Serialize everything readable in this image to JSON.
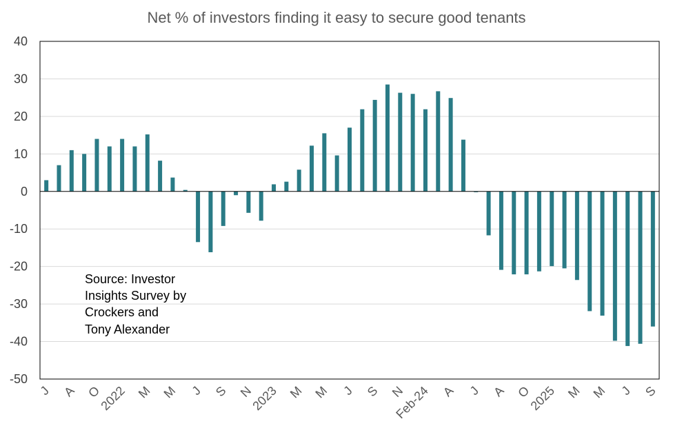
{
  "chart_data": {
    "type": "bar",
    "title": "Net % of investors finding it easy to secure good tenants",
    "xlabel": "",
    "ylabel": "",
    "ylim": [
      -50,
      40
    ],
    "y_ticks": [
      40,
      30,
      20,
      10,
      0,
      -10,
      -20,
      -30,
      -40,
      -50
    ],
    "grid": true,
    "bar_color": "#2a7b86",
    "x_tick_labels": [
      "J",
      "A",
      "O",
      "2022",
      "M",
      "M",
      "J",
      "S",
      "N",
      "2023",
      "M",
      "M",
      "J",
      "S",
      "N",
      "Feb-24",
      "A",
      "J",
      "A",
      "O",
      "2025",
      "M",
      "M",
      "J",
      "S"
    ],
    "values": [
      3,
      7,
      11,
      10,
      14,
      12,
      14,
      12,
      15.2,
      8.2,
      3.7,
      0.4,
      -13.5,
      -16.2,
      -9.2,
      -1,
      -5.7,
      -7.8,
      1.9,
      2.6,
      5.8,
      12.2,
      15.5,
      9.6,
      17,
      21.9,
      24.4,
      28.5,
      26.3,
      26,
      21.9,
      26.7,
      24.9,
      13.8,
      -0.2,
      -11.7,
      -20.9,
      -22.1,
      -22.1,
      -21.3,
      -19.9,
      -20.5,
      -23.6,
      -31.9,
      -33.1,
      -39.8,
      -41.2,
      -40.6,
      -36
    ]
  },
  "annotation": {
    "lines": [
      "Source: Investor",
      "Insights Survey by",
      "Crockers and",
      "Tony Alexander"
    ]
  }
}
